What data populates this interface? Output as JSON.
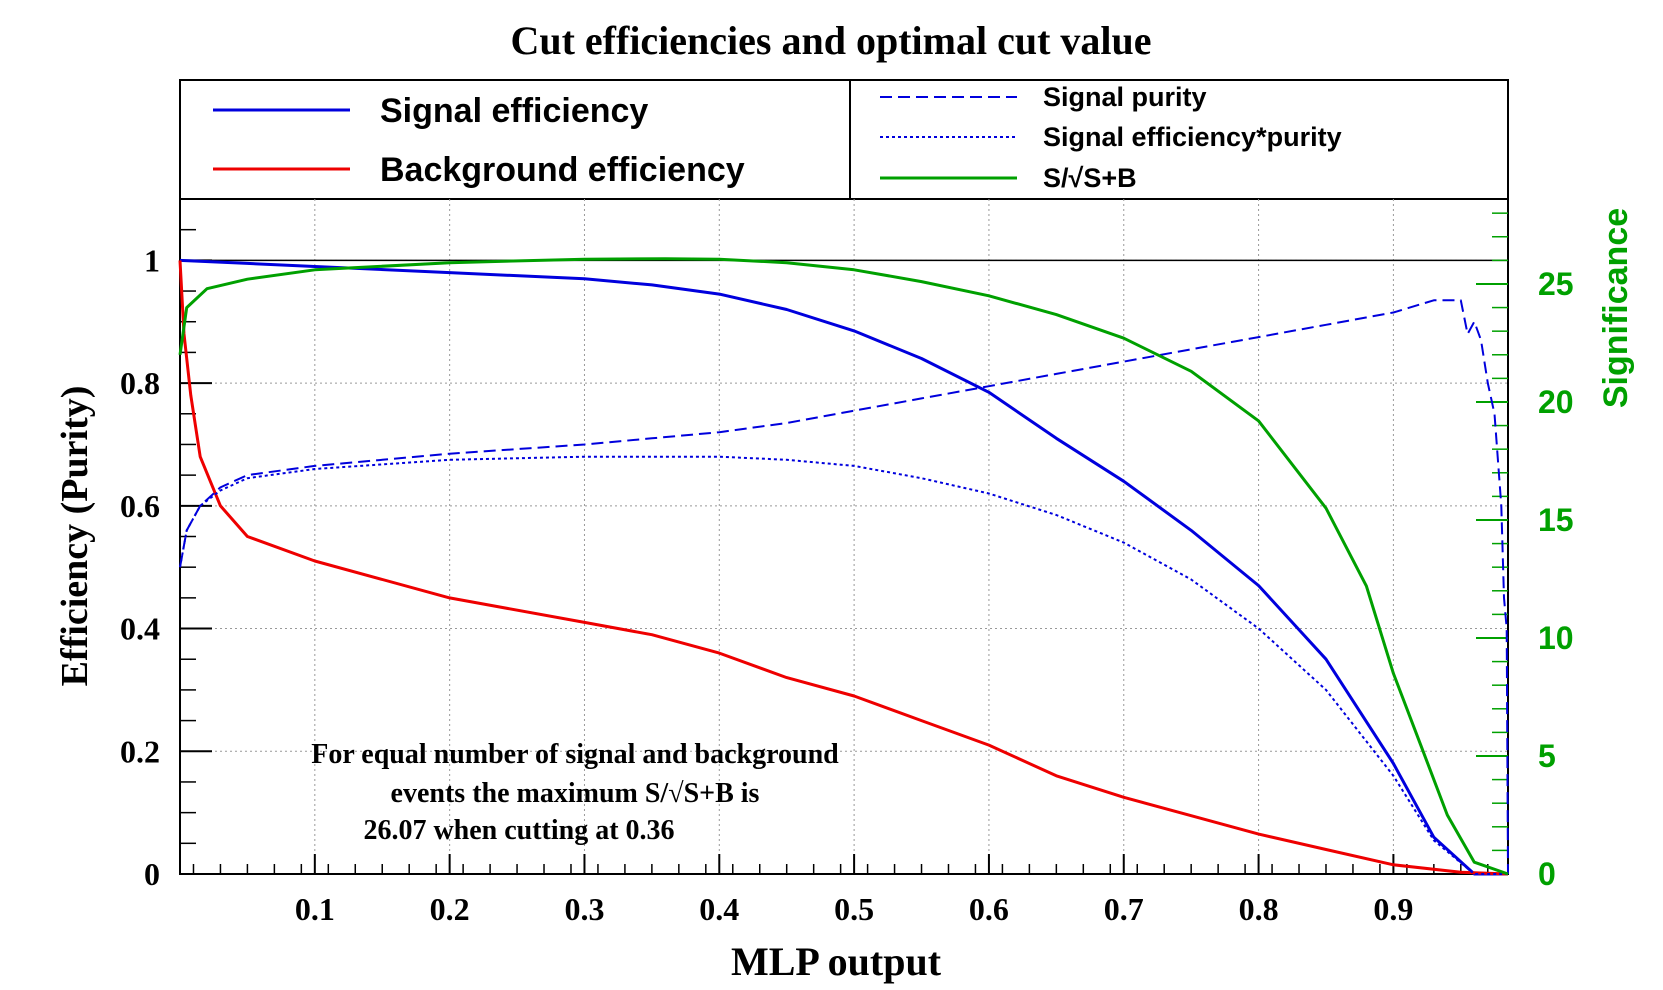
{
  "chart_data": {
    "type": "line",
    "title": "Cut efficiencies and optimal cut value",
    "xlabel": "MLP output",
    "ylabel": "Efficiency (Purity)",
    "y2label": "Significance",
    "xlim": [
      0.0,
      0.985
    ],
    "ylim": [
      0.0,
      1.1
    ],
    "y2lim": [
      0.0,
      28.6
    ],
    "x_ticks": [
      "0.1",
      "0.2",
      "0.3",
      "0.4",
      "0.5",
      "0.6",
      "0.7",
      "0.8",
      "0.9"
    ],
    "y_ticks": [
      "0",
      "0.2",
      "0.4",
      "0.6",
      "0.8",
      "1"
    ],
    "y2_ticks": [
      "0",
      "5",
      "10",
      "15",
      "20",
      "25"
    ],
    "grid": true,
    "legend": {
      "left": [
        "Signal efficiency",
        "Background efficiency"
      ],
      "right": [
        "Signal purity",
        "Signal efficiency*purity",
        "S/√S+B"
      ]
    },
    "annotation": {
      "line1": "For equal number of signal and background",
      "line2": "events the maximum S/√S+B is",
      "line3": "26.07 when cutting at  0.36"
    },
    "colors": {
      "signal": "#0000dd",
      "background": "#ee0000",
      "significance": "#00a000",
      "axis": "#000000"
    },
    "series": [
      {
        "name": "Signal efficiency",
        "axis": "left",
        "style": "solid",
        "color": "#0000dd",
        "x": [
          0,
          0.05,
          0.1,
          0.2,
          0.3,
          0.35,
          0.4,
          0.45,
          0.5,
          0.55,
          0.6,
          0.65,
          0.7,
          0.75,
          0.8,
          0.85,
          0.9,
          0.93,
          0.96,
          0.985
        ],
        "values": [
          1.0,
          0.995,
          0.99,
          0.98,
          0.97,
          0.96,
          0.945,
          0.92,
          0.885,
          0.84,
          0.785,
          0.71,
          0.64,
          0.56,
          0.47,
          0.35,
          0.18,
          0.06,
          0.0,
          0.0
        ]
      },
      {
        "name": "Background efficiency",
        "axis": "left",
        "style": "solid",
        "color": "#ee0000",
        "x": [
          0,
          0.003,
          0.008,
          0.015,
          0.03,
          0.05,
          0.1,
          0.2,
          0.3,
          0.35,
          0.4,
          0.45,
          0.5,
          0.55,
          0.6,
          0.65,
          0.7,
          0.75,
          0.8,
          0.85,
          0.9,
          0.95,
          0.985
        ],
        "values": [
          1.0,
          0.88,
          0.78,
          0.68,
          0.6,
          0.55,
          0.51,
          0.45,
          0.41,
          0.39,
          0.36,
          0.32,
          0.29,
          0.25,
          0.21,
          0.16,
          0.125,
          0.095,
          0.065,
          0.04,
          0.015,
          0.003,
          0.0
        ]
      },
      {
        "name": "Signal purity",
        "axis": "left",
        "style": "dashed",
        "color": "#0000dd",
        "x": [
          0,
          0.005,
          0.015,
          0.03,
          0.05,
          0.1,
          0.2,
          0.3,
          0.35,
          0.4,
          0.45,
          0.5,
          0.55,
          0.6,
          0.65,
          0.7,
          0.75,
          0.8,
          0.85,
          0.9,
          0.93,
          0.95,
          0.955,
          0.96,
          0.965,
          0.97,
          0.975,
          0.98,
          0.982,
          0.984,
          0.985
        ],
        "values": [
          0.5,
          0.56,
          0.6,
          0.63,
          0.65,
          0.665,
          0.685,
          0.7,
          0.71,
          0.72,
          0.735,
          0.755,
          0.775,
          0.795,
          0.815,
          0.835,
          0.855,
          0.875,
          0.895,
          0.915,
          0.935,
          0.935,
          0.88,
          0.9,
          0.87,
          0.8,
          0.75,
          0.6,
          0.45,
          0.4,
          0.0
        ]
      },
      {
        "name": "Signal efficiency*purity",
        "axis": "left",
        "style": "dotted",
        "color": "#0000dd",
        "x": [
          0,
          0.005,
          0.015,
          0.03,
          0.05,
          0.1,
          0.2,
          0.3,
          0.4,
          0.45,
          0.5,
          0.55,
          0.6,
          0.65,
          0.7,
          0.75,
          0.8,
          0.85,
          0.9,
          0.93,
          0.96,
          0.985
        ],
        "values": [
          0.5,
          0.56,
          0.6,
          0.625,
          0.645,
          0.66,
          0.675,
          0.68,
          0.68,
          0.675,
          0.665,
          0.645,
          0.62,
          0.585,
          0.54,
          0.48,
          0.4,
          0.3,
          0.16,
          0.055,
          0.0,
          0.0
        ]
      },
      {
        "name": "S/√S+B",
        "axis": "right",
        "style": "solid",
        "color": "#00a000",
        "x": [
          0,
          0.005,
          0.02,
          0.05,
          0.1,
          0.2,
          0.3,
          0.36,
          0.4,
          0.45,
          0.5,
          0.55,
          0.6,
          0.65,
          0.7,
          0.75,
          0.8,
          0.85,
          0.88,
          0.9,
          0.92,
          0.94,
          0.96,
          0.985
        ],
        "values": [
          22.0,
          24.0,
          24.8,
          25.2,
          25.6,
          25.9,
          26.05,
          26.07,
          26.05,
          25.9,
          25.6,
          25.1,
          24.5,
          23.7,
          22.7,
          21.3,
          19.2,
          15.5,
          12.2,
          8.5,
          5.5,
          2.5,
          0.5,
          0.0
        ]
      }
    ]
  }
}
